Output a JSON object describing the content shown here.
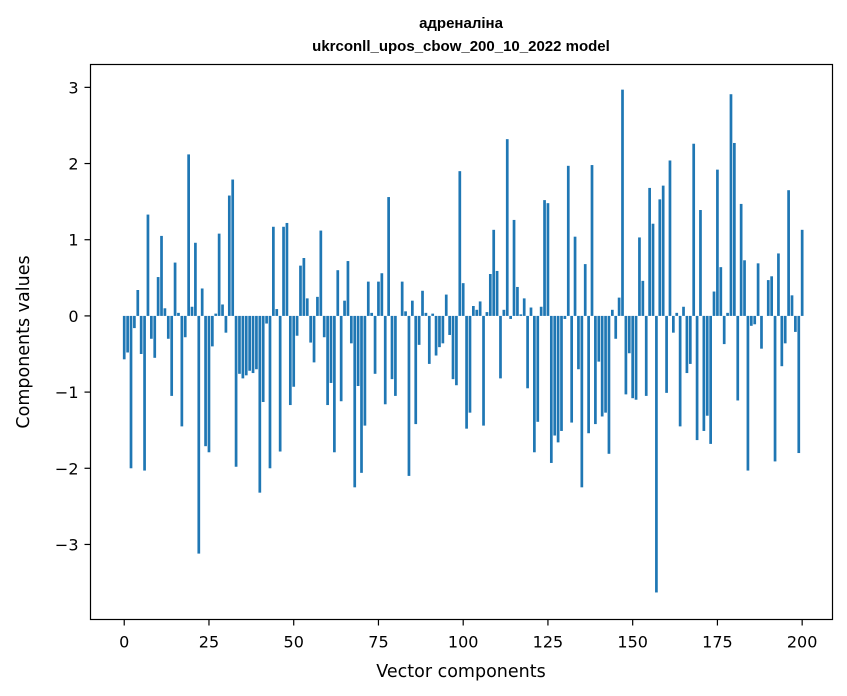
{
  "chart_data": {
    "type": "bar",
    "title": "адреналіна",
    "subtitle": "ukrconll_upos_cbow_200_10_2022 model",
    "xlabel": "Vector components",
    "ylabel": "Components values",
    "xlim": [
      -9.95,
      208.95
    ],
    "ylim": [
      -3.985,
      3.3
    ],
    "xticks": [
      0,
      25,
      50,
      75,
      100,
      125,
      150,
      175,
      200
    ],
    "xtick_labels": [
      "0",
      "25",
      "50",
      "75",
      "100",
      "125",
      "150",
      "175",
      "200"
    ],
    "yticks": [
      -3,
      -2,
      -1,
      0,
      1,
      2,
      3
    ],
    "ytick_labels": [
      "−3",
      "−2",
      "−1",
      "0",
      "1",
      "2",
      "3"
    ],
    "grid": false,
    "legend": "none",
    "bar_color": "#1f77b4",
    "x_start": 0,
    "values": [
      -0.57,
      -0.48,
      -2.0,
      -0.16,
      0.34,
      -0.5,
      -2.03,
      1.33,
      -0.3,
      -0.55,
      0.51,
      1.05,
      0.1,
      -0.3,
      -1.05,
      0.7,
      0.04,
      -1.45,
      -0.28,
      2.12,
      0.12,
      0.96,
      -3.12,
      0.36,
      -1.71,
      -1.79,
      -0.4,
      0.03,
      1.08,
      0.15,
      -0.22,
      1.58,
      1.79,
      -1.98,
      -0.76,
      -0.82,
      -0.78,
      -0.72,
      -0.75,
      -0.7,
      -2.32,
      -1.13,
      -0.1,
      -2.0,
      1.17,
      0.09,
      -1.78,
      1.17,
      1.22,
      -1.17,
      -0.93,
      -0.26,
      0.66,
      0.76,
      0.23,
      -0.35,
      -0.61,
      0.25,
      1.12,
      -0.28,
      -1.17,
      -0.88,
      -1.79,
      0.6,
      -1.12,
      0.2,
      0.72,
      -0.36,
      -2.25,
      -0.92,
      -2.06,
      -1.44,
      0.45,
      0.04,
      -0.76,
      0.45,
      0.56,
      -1.16,
      1.56,
      -0.83,
      -1.05,
      0.0,
      0.45,
      0.06,
      -2.1,
      0.2,
      -1.42,
      -0.38,
      0.33,
      0.04,
      -0.63,
      0.03,
      -0.52,
      -0.41,
      -0.36,
      0.28,
      -0.25,
      -0.83,
      -0.91,
      1.9,
      0.43,
      -1.48,
      -1.27,
      0.13,
      0.08,
      0.19,
      -1.44,
      0.05,
      0.55,
      1.13,
      0.59,
      -0.82,
      0.08,
      2.32,
      -0.04,
      1.26,
      0.38,
      0.02,
      0.23,
      -0.95,
      0.11,
      -1.79,
      -1.39,
      0.12,
      1.52,
      1.48,
      -1.93,
      -1.57,
      -1.66,
      -1.51,
      -0.04,
      1.97,
      -1.4,
      1.04,
      -0.7,
      -2.25,
      0.68,
      -1.54,
      1.98,
      -1.42,
      -0.6,
      -1.32,
      -1.27,
      -1.81,
      0.08,
      -0.3,
      0.24,
      2.97,
      -1.03,
      -0.49,
      -1.08,
      -1.1,
      1.03,
      0.46,
      -1.05,
      1.68,
      1.21,
      -3.63,
      1.53,
      1.71,
      -1.01,
      2.04,
      -0.22,
      0.04,
      -1.45,
      0.12,
      -0.75,
      -0.63,
      2.26,
      -1.63,
      1.39,
      -1.51,
      -1.31,
      -1.68,
      0.32,
      1.92,
      0.64,
      -0.37,
      0.04,
      2.91,
      2.27,
      -1.11,
      1.47,
      0.73,
      -2.03,
      -0.13,
      -0.11,
      0.69,
      -0.43,
      0.0,
      0.47,
      0.52,
      -1.91,
      0.82,
      -0.66,
      -0.36,
      1.65,
      0.27,
      -0.21,
      -1.8,
      1.13
    ]
  }
}
